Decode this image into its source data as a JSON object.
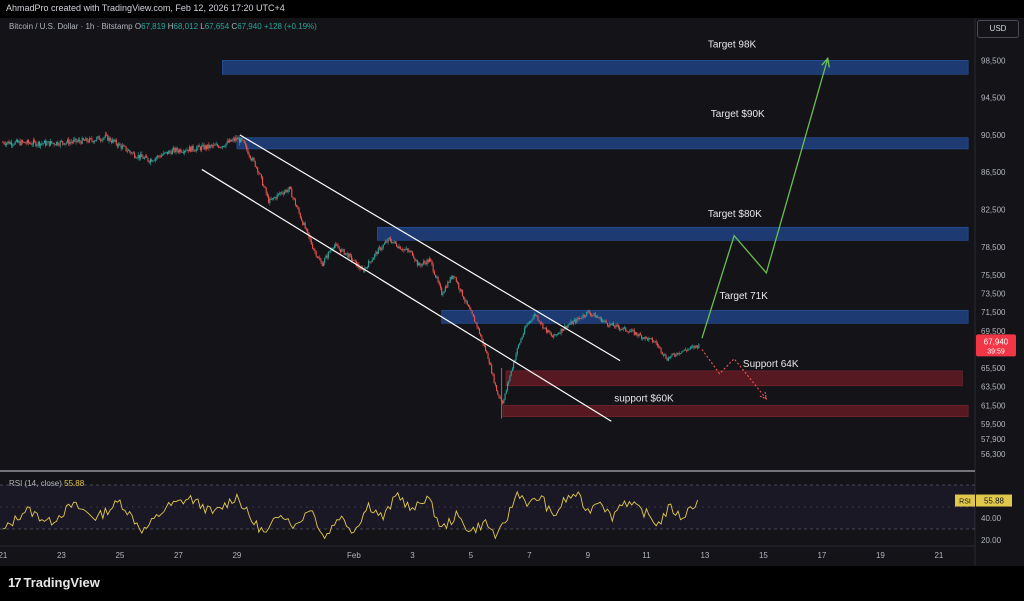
{
  "header": {
    "creator": "AhmadPro created with TradingView.com, Feb 12, 2026 17:20 UTC+4",
    "currency": "USD"
  },
  "symbol": {
    "name": "Bitcoin / U.S. Dollar · 1h · Bitstamp",
    "o_label": "O",
    "o": "67,819",
    "h_label": "H",
    "h": "68,012",
    "l_label": "L",
    "l": "67,654",
    "c_label": "C",
    "c": "67,940",
    "change": "+128 (+0.19%)"
  },
  "price_tag": {
    "price": "67,940",
    "countdown": "39:59",
    "color": "#f23645"
  },
  "rsi": {
    "title": "RSI (14, close)",
    "value": "55.88",
    "tag_label": "RSI",
    "color": "#e0c94a"
  },
  "footer": {
    "brand": "TradingView"
  },
  "colors": {
    "background": "#131318",
    "candle_up": "#26a69a",
    "candle_down": "#ef5350",
    "target_zone": "#1e3f7a",
    "support_zone": "#5c1a22",
    "channel": "#ffffff",
    "projection_up": "#6abf4b",
    "projection_down": "#ef5350"
  },
  "chart_data": {
    "type": "candlestick",
    "symbol": "BTCUSD",
    "timeframe": "1h",
    "ylim": [
      55000,
      101000
    ],
    "price_ticks": [
      "98,500",
      "94,500",
      "90,500",
      "86,500",
      "82,500",
      "78,500",
      "75,500",
      "73,500",
      "71,500",
      "69,500",
      "67,500",
      "65,500",
      "63,500",
      "61,500",
      "59,500",
      "57,900",
      "56,300"
    ],
    "price_tick_values": [
      98500,
      94500,
      90500,
      86500,
      82500,
      78500,
      75500,
      73500,
      71500,
      69500,
      67500,
      65500,
      63500,
      61500,
      59500,
      57900,
      56300
    ],
    "x_ticks": [
      "21",
      "23",
      "25",
      "27",
      "29",
      "Feb",
      "3",
      "5",
      "7",
      "9",
      "11",
      "13",
      "15",
      "17",
      "19",
      "21"
    ],
    "x_tick_days": [
      -11,
      -9,
      -7,
      -5,
      -3,
      1,
      3,
      5,
      7,
      9,
      11,
      13,
      15,
      17,
      19,
      21
    ],
    "x_day_range": [
      -11.1,
      22.2
    ],
    "price_path": [
      [
        -11.0,
        89700
      ],
      [
        -9.5,
        89600
      ],
      [
        -8.0,
        89900
      ],
      [
        -7.5,
        90300
      ],
      [
        -6.5,
        88400
      ],
      [
        -6.0,
        87800
      ],
      [
        -5.2,
        88800
      ],
      [
        -4.0,
        89200
      ],
      [
        -3.5,
        89400
      ],
      [
        -3.0,
        90100
      ],
      [
        -2.8,
        89700
      ],
      [
        -2.3,
        86900
      ],
      [
        -1.9,
        83300
      ],
      [
        -1.5,
        84300
      ],
      [
        -1.2,
        84700
      ],
      [
        -0.8,
        81500
      ],
      [
        -0.4,
        78400
      ],
      [
        -0.1,
        76600
      ],
      [
        0.3,
        78700
      ],
      [
        0.8,
        77600
      ],
      [
        1.3,
        75900
      ],
      [
        1.8,
        78000
      ],
      [
        2.2,
        79300
      ],
      [
        2.6,
        78400
      ],
      [
        3.0,
        77800
      ],
      [
        3.2,
        76500
      ],
      [
        3.6,
        77100
      ],
      [
        4.0,
        73500
      ],
      [
        4.4,
        75600
      ],
      [
        4.8,
        72700
      ],
      [
        5.2,
        70100
      ],
      [
        5.6,
        66500
      ],
      [
        5.9,
        62800
      ],
      [
        6.1,
        61800
      ],
      [
        6.3,
        64300
      ],
      [
        6.6,
        67700
      ],
      [
        6.9,
        70100
      ],
      [
        7.2,
        71300
      ],
      [
        7.5,
        69800
      ],
      [
        7.8,
        68800
      ],
      [
        8.2,
        69900
      ],
      [
        8.6,
        70600
      ],
      [
        9.0,
        71500
      ],
      [
        9.3,
        71000
      ],
      [
        9.7,
        70200
      ],
      [
        10.1,
        69800
      ],
      [
        10.5,
        69400
      ],
      [
        10.9,
        68800
      ],
      [
        11.3,
        68300
      ],
      [
        11.7,
        66500
      ],
      [
        12.1,
        67200
      ],
      [
        12.5,
        67600
      ],
      [
        12.8,
        67940
      ]
    ],
    "rsi_range": [
      20,
      80
    ],
    "rsi_ticks": [
      "40.00",
      "20.00"
    ],
    "rsi_tick_values": [
      40,
      20
    ],
    "rsi_path": [
      [
        -11.0,
        28
      ],
      [
        -10.2,
        48
      ],
      [
        -9.4,
        36
      ],
      [
        -8.6,
        52
      ],
      [
        -7.8,
        40
      ],
      [
        -7.0,
        55
      ],
      [
        -6.2,
        28
      ],
      [
        -5.4,
        50
      ],
      [
        -4.6,
        58
      ],
      [
        -3.8,
        44
      ],
      [
        -3.0,
        60
      ],
      [
        -2.5,
        38
      ],
      [
        -2.0,
        25
      ],
      [
        -1.5,
        46
      ],
      [
        -1.0,
        32
      ],
      [
        -0.5,
        50
      ],
      [
        0.0,
        22
      ],
      [
        0.5,
        42
      ],
      [
        1.0,
        28
      ],
      [
        1.5,
        52
      ],
      [
        2.0,
        40
      ],
      [
        2.5,
        62
      ],
      [
        3.0,
        46
      ],
      [
        3.5,
        60
      ],
      [
        4.0,
        30
      ],
      [
        4.5,
        42
      ],
      [
        5.0,
        28
      ],
      [
        5.5,
        36
      ],
      [
        5.9,
        22
      ],
      [
        6.3,
        44
      ],
      [
        6.6,
        64
      ],
      [
        7.0,
        52
      ],
      [
        7.4,
        60
      ],
      [
        7.8,
        40
      ],
      [
        8.2,
        56
      ],
      [
        8.6,
        62
      ],
      [
        9.0,
        46
      ],
      [
        9.4,
        58
      ],
      [
        9.8,
        40
      ],
      [
        10.2,
        56
      ],
      [
        10.6,
        50
      ],
      [
        11.0,
        44
      ],
      [
        11.4,
        34
      ],
      [
        11.8,
        50
      ],
      [
        12.2,
        40
      ],
      [
        12.6,
        52
      ],
      [
        12.8,
        55.88
      ]
    ],
    "zones": [
      {
        "label": "Target 98K",
        "kind": "target",
        "from_day": -3.5,
        "to_day": 22.0,
        "low": 97000,
        "high": 98500
      },
      {
        "label": "Target $90K",
        "kind": "target",
        "from_day": -3.0,
        "to_day": 22.0,
        "low": 89000,
        "high": 90200
      },
      {
        "label": "Target $80K",
        "kind": "target",
        "from_day": 1.8,
        "to_day": 22.0,
        "low": 79200,
        "high": 80600
      },
      {
        "label": "Target 71K",
        "kind": "target",
        "from_day": 4.0,
        "to_day": 22.0,
        "low": 70300,
        "high": 71700
      },
      {
        "label": "Support 64K",
        "kind": "support",
        "from_day": 6.2,
        "to_day": 21.8,
        "low": 63600,
        "high": 65200
      },
      {
        "label": "support $60K",
        "kind": "support",
        "from_day": 6.1,
        "to_day": 22.0,
        "low": 60300,
        "high": 61500
      }
    ],
    "channel_upper": [
      [
        -2.9,
        90500
      ],
      [
        10.1,
        66300
      ]
    ],
    "channel_lower": [
      [
        -4.2,
        86800
      ],
      [
        9.8,
        59800
      ]
    ],
    "projection_bull": [
      [
        12.9,
        68700
      ],
      [
        14.0,
        79700
      ],
      [
        15.1,
        75700
      ],
      [
        17.2,
        98700
      ]
    ],
    "projection_bear": [
      [
        12.9,
        67500
      ],
      [
        13.5,
        64900
      ],
      [
        14.0,
        66500
      ],
      [
        15.1,
        62200
      ]
    ]
  }
}
